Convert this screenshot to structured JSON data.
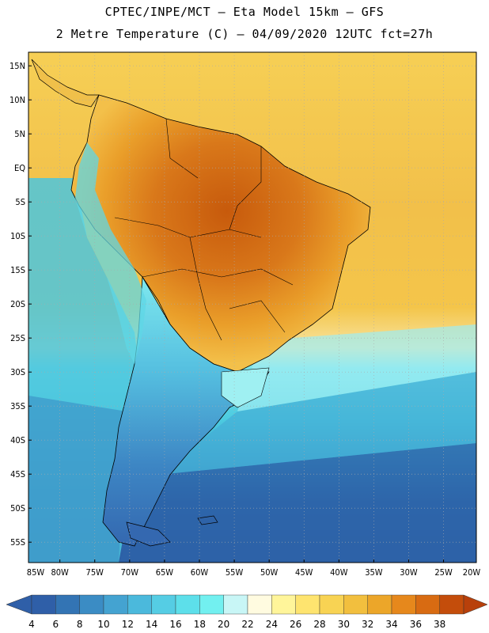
{
  "header": {
    "line1": "CPTEC/INPE/MCT –  Eta Model 15km – GFS",
    "line2": "2 Metre Temperature (C) – 04/09/2020 12UTC fct=27h"
  },
  "map": {
    "lat_labels": [
      "15N",
      "10N",
      "5N",
      "EQ",
      "5S",
      "10S",
      "15S",
      "20S",
      "25S",
      "30S",
      "35S",
      "40S",
      "45S",
      "50S",
      "55S"
    ],
    "lon_labels": [
      "85W",
      "80W",
      "75W",
      "70W",
      "65W",
      "60W",
      "55W",
      "50W",
      "45W",
      "40W",
      "35W",
      "30W",
      "25W",
      "20W"
    ],
    "lon_range": [
      -85,
      -20
    ],
    "lat_range": [
      -58,
      16
    ],
    "ocean_colors": {
      "tropical_atlantic": "#f4c242",
      "north_atlantic": "#f6d257",
      "warm_land": "#e2931f",
      "hot_land": "#c65a0a",
      "cool_pacific": "#4bc6dd",
      "cold_south": "#2d62a6"
    }
  },
  "colorbar": {
    "labels": [
      "4",
      "6",
      "8",
      "10",
      "12",
      "14",
      "16",
      "18",
      "20",
      "22",
      "24",
      "26",
      "28",
      "30",
      "32",
      "34",
      "36",
      "38"
    ],
    "low_color": "#2f5fa8",
    "high_color": "#b8400b",
    "colors": [
      "#2f5fa8",
      "#3374b4",
      "#3b8cc4",
      "#44a3d1",
      "#4bb9dc",
      "#55cde4",
      "#5ddfea",
      "#72f0f0",
      "#c8f6f6",
      "#fffbe0",
      "#fff59a",
      "#fee46f",
      "#f8d353",
      "#f2bf3e",
      "#eca629",
      "#e6881c",
      "#d86b12",
      "#c44d0b"
    ]
  }
}
